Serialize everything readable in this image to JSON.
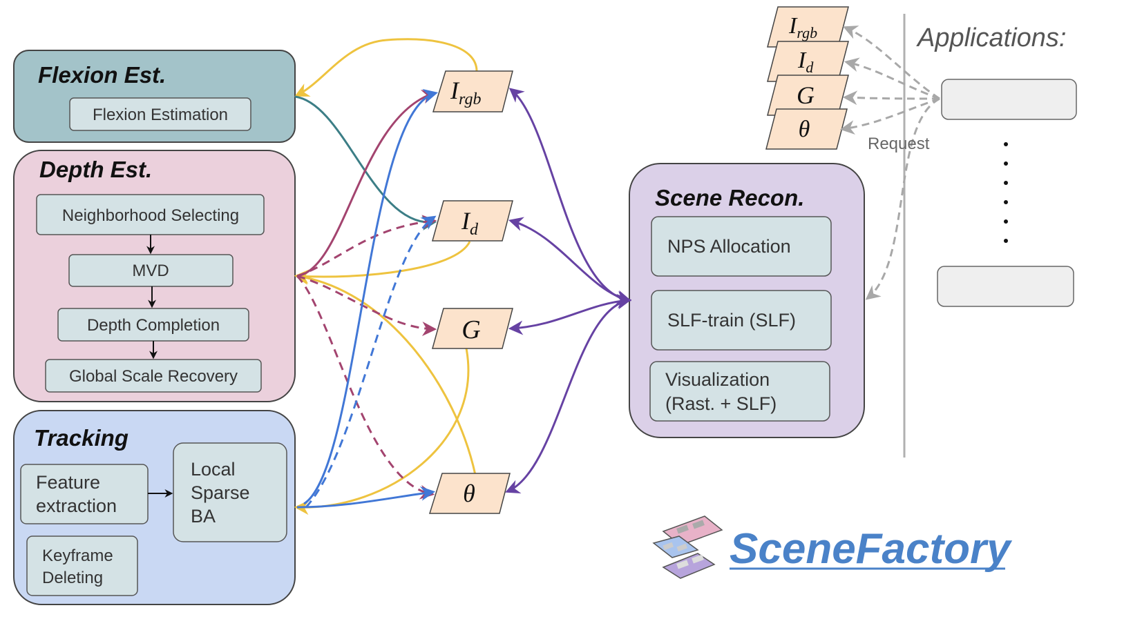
{
  "colors": {
    "flexion": "#a3c3c9",
    "depth": "#ebd0dc",
    "tracking": "#c9d8f3",
    "scene": "#dbd0e8",
    "inner_box": "#d4e2e5",
    "output": "#fce3cc",
    "yellow": "#eec33f",
    "teal": "#3c7e86",
    "magenta": "#a3446f",
    "blue": "#4177d6",
    "purple": "#6642a3",
    "gray_arrow": "#a8a8a8",
    "brand": "#4a82c8"
  },
  "modules": {
    "flexion": {
      "title": "Flexion Est.",
      "items": [
        "Flexion Estimation"
      ]
    },
    "depth": {
      "title": "Depth Est.",
      "items": [
        "Neighborhood Selecting",
        "MVD",
        "Depth Completion",
        "Global Scale Recovery"
      ]
    },
    "tracking": {
      "title": "Tracking",
      "feature": [
        "Feature",
        "extraction"
      ],
      "local": [
        "Local",
        "Sparse",
        "BA"
      ],
      "keyframe": [
        "Keyframe",
        "Deleting"
      ]
    },
    "scene": {
      "title": "Scene Recon.",
      "items": [
        "NPS Allocation",
        "SLF-train (SLF)"
      ],
      "visualization": [
        "Visualization",
        "(Rast. + SLF)"
      ]
    }
  },
  "outputs": {
    "irgb": {
      "main": "I",
      "sub": "rgb"
    },
    "id": {
      "main": "I",
      "sub": "d"
    },
    "g": {
      "main": "G"
    },
    "theta": {
      "main": "θ"
    }
  },
  "applications": {
    "title": "Applications:",
    "request_label": "Request",
    "stack": [
      {
        "main": "I",
        "sub": "rgb"
      },
      {
        "main": "I",
        "sub": "d"
      },
      {
        "main": "G"
      },
      {
        "main": "θ"
      }
    ],
    "dots": "⋮"
  },
  "brand": {
    "name": "SceneFactory",
    "logo": "stacked-layers-icon"
  }
}
